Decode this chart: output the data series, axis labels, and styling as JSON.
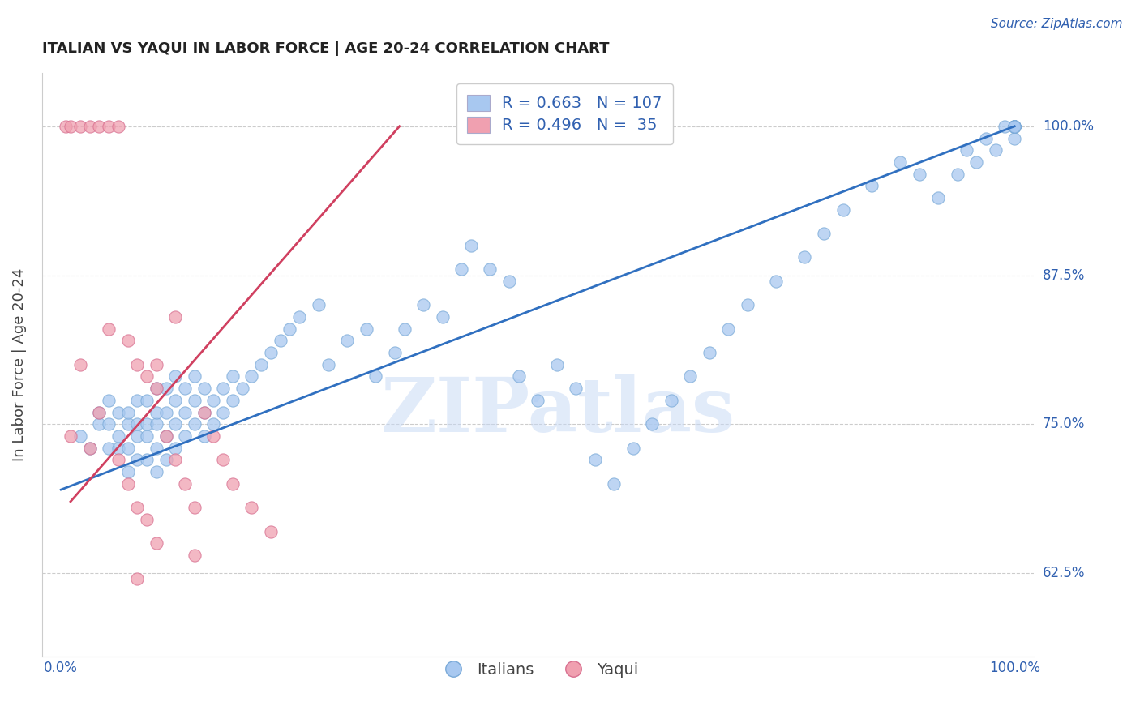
{
  "title": "ITALIAN VS YAQUI IN LABOR FORCE | AGE 20-24 CORRELATION CHART",
  "source_text": "Source: ZipAtlas.com",
  "ylabel": "In Labor Force | Age 20-24",
  "xlim": [
    -0.02,
    1.02
  ],
  "ylim": [
    0.555,
    1.045
  ],
  "ytick_vals": [
    0.625,
    0.75,
    0.875,
    1.0
  ],
  "ytick_labels": [
    "62.5%",
    "75.0%",
    "87.5%",
    "100.0%"
  ],
  "legend_italian_R": "0.663",
  "legend_italian_N": "107",
  "legend_yaqui_R": "0.496",
  "legend_yaqui_N": " 35",
  "watermark": "ZIPatlas",
  "blue_color": "#A8C8F0",
  "blue_edge_color": "#7AAAD8",
  "pink_color": "#F0A0B0",
  "pink_edge_color": "#D87090",
  "blue_line_color": "#3070C0",
  "pink_line_color": "#D04060",
  "legend_text_color": "#3060B0",
  "title_color": "#222222",
  "grid_color": "#CCCCCC",
  "italian_x": [
    0.02,
    0.03,
    0.04,
    0.04,
    0.05,
    0.05,
    0.05,
    0.06,
    0.06,
    0.06,
    0.07,
    0.07,
    0.07,
    0.07,
    0.08,
    0.08,
    0.08,
    0.08,
    0.09,
    0.09,
    0.09,
    0.09,
    0.1,
    0.1,
    0.1,
    0.1,
    0.1,
    0.11,
    0.11,
    0.11,
    0.11,
    0.12,
    0.12,
    0.12,
    0.12,
    0.13,
    0.13,
    0.13,
    0.14,
    0.14,
    0.14,
    0.15,
    0.15,
    0.15,
    0.16,
    0.16,
    0.17,
    0.17,
    0.18,
    0.18,
    0.19,
    0.2,
    0.21,
    0.22,
    0.23,
    0.24,
    0.25,
    0.27,
    0.28,
    0.3,
    0.32,
    0.33,
    0.35,
    0.36,
    0.38,
    0.4,
    0.42,
    0.43,
    0.45,
    0.47,
    0.48,
    0.5,
    0.52,
    0.54,
    0.56,
    0.58,
    0.6,
    0.62,
    0.64,
    0.66,
    0.68,
    0.7,
    0.72,
    0.75,
    0.78,
    0.8,
    0.82,
    0.85,
    0.88,
    0.9,
    0.92,
    0.94,
    0.95,
    0.96,
    0.97,
    0.98,
    0.99,
    1.0,
    1.0,
    1.0,
    1.0,
    1.0,
    1.0,
    1.0,
    1.0,
    1.0,
    1.0
  ],
  "italian_y": [
    0.74,
    0.73,
    0.75,
    0.76,
    0.73,
    0.75,
    0.77,
    0.73,
    0.74,
    0.76,
    0.71,
    0.73,
    0.75,
    0.76,
    0.72,
    0.74,
    0.75,
    0.77,
    0.72,
    0.74,
    0.75,
    0.77,
    0.71,
    0.73,
    0.75,
    0.76,
    0.78,
    0.72,
    0.74,
    0.76,
    0.78,
    0.73,
    0.75,
    0.77,
    0.79,
    0.74,
    0.76,
    0.78,
    0.75,
    0.77,
    0.79,
    0.74,
    0.76,
    0.78,
    0.75,
    0.77,
    0.76,
    0.78,
    0.77,
    0.79,
    0.78,
    0.79,
    0.8,
    0.81,
    0.82,
    0.83,
    0.84,
    0.85,
    0.8,
    0.82,
    0.83,
    0.79,
    0.81,
    0.83,
    0.85,
    0.84,
    0.88,
    0.9,
    0.88,
    0.87,
    0.79,
    0.77,
    0.8,
    0.78,
    0.72,
    0.7,
    0.73,
    0.75,
    0.77,
    0.79,
    0.81,
    0.83,
    0.85,
    0.87,
    0.89,
    0.91,
    0.93,
    0.95,
    0.97,
    0.96,
    0.94,
    0.96,
    0.98,
    0.97,
    0.99,
    0.98,
    1.0,
    0.99,
    1.0,
    1.0,
    1.0,
    1.0,
    1.0,
    1.0,
    1.0,
    1.0,
    1.0
  ],
  "yaqui_x": [
    0.005,
    0.01,
    0.01,
    0.02,
    0.02,
    0.03,
    0.03,
    0.04,
    0.04,
    0.05,
    0.05,
    0.06,
    0.06,
    0.07,
    0.07,
    0.08,
    0.08,
    0.09,
    0.09,
    0.1,
    0.1,
    0.11,
    0.12,
    0.13,
    0.14,
    0.15,
    0.16,
    0.17,
    0.18,
    0.2,
    0.22,
    0.14,
    0.1,
    0.12,
    0.08
  ],
  "yaqui_y": [
    1.0,
    1.0,
    0.74,
    1.0,
    0.8,
    1.0,
    0.73,
    1.0,
    0.76,
    1.0,
    0.83,
    1.0,
    0.72,
    0.82,
    0.7,
    0.8,
    0.68,
    0.79,
    0.67,
    0.78,
    0.65,
    0.74,
    0.72,
    0.7,
    0.68,
    0.76,
    0.74,
    0.72,
    0.7,
    0.68,
    0.66,
    0.64,
    0.8,
    0.84,
    0.62
  ],
  "blue_line_x": [
    0.0,
    1.0
  ],
  "blue_line_y": [
    0.695,
    1.0
  ],
  "pink_line_x": [
    0.01,
    0.355
  ],
  "pink_line_y": [
    0.685,
    1.0
  ]
}
